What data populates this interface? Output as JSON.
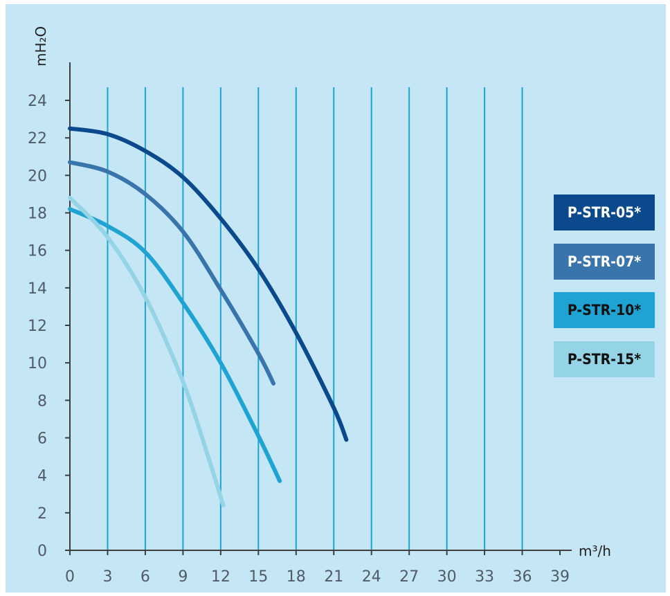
{
  "chart_data": {
    "type": "line",
    "xlabel": "m³/h",
    "ylabel": "mH₂O",
    "xlim": [
      0,
      39
    ],
    "ylim": [
      0,
      24
    ],
    "x_ticks": [
      0,
      3,
      6,
      9,
      12,
      15,
      18,
      21,
      24,
      27,
      30,
      33,
      36,
      39
    ],
    "y_ticks": [
      0,
      2,
      4,
      6,
      8,
      10,
      12,
      14,
      16,
      18,
      20,
      22,
      24
    ],
    "grid": "vertical",
    "legend_position": "right",
    "series": [
      {
        "name": "P-STR-05*",
        "color": "#0a4a8c",
        "points": [
          [
            0,
            22.5
          ],
          [
            3,
            22.2
          ],
          [
            6,
            21.3
          ],
          [
            9,
            19.9
          ],
          [
            12,
            17.7
          ],
          [
            15,
            15.0
          ],
          [
            18,
            11.6
          ],
          [
            21,
            7.6
          ],
          [
            22,
            5.9
          ]
        ]
      },
      {
        "name": "P-STR-07*",
        "color": "#3a74ad",
        "points": [
          [
            0,
            20.7
          ],
          [
            3,
            20.2
          ],
          [
            6,
            19.0
          ],
          [
            9,
            17.0
          ],
          [
            12,
            13.9
          ],
          [
            15,
            10.5
          ],
          [
            16.2,
            8.9
          ]
        ]
      },
      {
        "name": "P-STR-10*",
        "color": "#1ea3d3",
        "points": [
          [
            0,
            18.2
          ],
          [
            3,
            17.3
          ],
          [
            6,
            15.9
          ],
          [
            9,
            13.2
          ],
          [
            12,
            10.0
          ],
          [
            15,
            6.1
          ],
          [
            16.7,
            3.7
          ]
        ]
      },
      {
        "name": "P-STR-15*",
        "color": "#95d4e6",
        "points": [
          [
            0,
            18.8
          ],
          [
            3,
            16.7
          ],
          [
            6,
            13.5
          ],
          [
            9,
            9.0
          ],
          [
            11,
            5.0
          ],
          [
            12.2,
            2.4
          ]
        ]
      }
    ]
  },
  "legend": [
    {
      "label": "P-STR-05*",
      "bg": "#0a4a8c",
      "fg": "#ffffff"
    },
    {
      "label": "P-STR-07*",
      "bg": "#3a74ad",
      "fg": "#ffffff"
    },
    {
      "label": "P-STR-10*",
      "bg": "#1ea3d3",
      "fg": "#111111"
    },
    {
      "label": "P-STR-15*",
      "bg": "#95d4e6",
      "fg": "#111111"
    }
  ],
  "colors": {
    "background": "#c5e6f5",
    "grid": "#1ea3d3",
    "axis": "#3d3d3d"
  }
}
